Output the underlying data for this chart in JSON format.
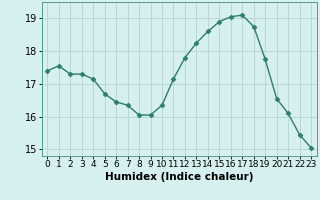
{
  "x": [
    0,
    1,
    2,
    3,
    4,
    5,
    6,
    7,
    8,
    9,
    10,
    11,
    12,
    13,
    14,
    15,
    16,
    17,
    18,
    19,
    20,
    21,
    22,
    23
  ],
  "y": [
    17.4,
    17.55,
    17.3,
    17.3,
    17.15,
    16.7,
    16.45,
    16.35,
    16.05,
    16.05,
    16.35,
    17.15,
    17.8,
    18.25,
    18.6,
    18.9,
    19.05,
    19.1,
    18.75,
    17.75,
    16.55,
    16.1,
    15.45,
    15.05
  ],
  "line_color": "#2e7d6e",
  "marker": "D",
  "marker_size": 2.5,
  "background_color": "#d6f0f0",
  "grid_color": "#b8d8d8",
  "xlabel": "Humidex (Indice chaleur)",
  "ylim": [
    14.8,
    19.5
  ],
  "xlim": [
    -0.5,
    23.5
  ],
  "yticks": [
    15,
    16,
    17,
    18,
    19
  ],
  "xticks": [
    0,
    1,
    2,
    3,
    4,
    5,
    6,
    7,
    8,
    9,
    10,
    11,
    12,
    13,
    14,
    15,
    16,
    17,
    18,
    19,
    20,
    21,
    22,
    23
  ],
  "xlabel_fontsize": 7.5,
  "tick_fontsize": 6.5,
  "linewidth": 1.0,
  "spine_color": "#5a9a8a"
}
